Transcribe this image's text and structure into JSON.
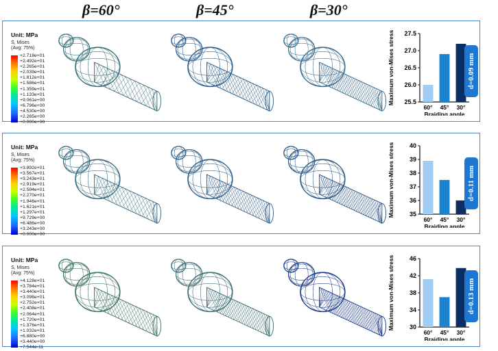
{
  "columns": {
    "b60": "β=60°",
    "b45": "β=45°",
    "b30": "β=30°"
  },
  "rows": [
    {
      "d_label": "d=0.09 mm",
      "legend": {
        "unit": "Unit: MPa",
        "var": "S, Mises",
        "avg": "(Avg: 75%)",
        "values": [
          "+2.718e+01",
          "+2.492e+01",
          "+2.265e+01",
          "+2.039e+01",
          "+1.812e+01",
          "+1.586e+01",
          "+1.359e+01",
          "+1.133e+01",
          "+9.061e+00",
          "+6.796e+00",
          "+4.530e+00",
          "+2.265e+00",
          "+0.000e+00"
        ]
      },
      "stent_tints": [
        "#3d6f7a",
        "#2f5f8a",
        "#3a6c8c"
      ]
    },
    {
      "d_label": "d=0.11 mm",
      "legend": {
        "unit": "Unit: MPa",
        "var": "S, Mises",
        "avg": "(Avg: 75%)",
        "values": [
          "+3.892e+01",
          "+3.567e+01",
          "+3.243e+01",
          "+2.919e+01",
          "+2.594e+01",
          "+2.270e+01",
          "+1.946e+01",
          "+1.621e+01",
          "+1.297e+01",
          "+9.729e+00",
          "+6.486e+00",
          "+3.243e+00",
          "+0.000e+00"
        ]
      },
      "stent_tints": [
        "#3a6f80",
        "#35628a",
        "#2f5a86"
      ]
    },
    {
      "d_label": "d=0.13 mm",
      "legend": {
        "unit": "Unit: MPa",
        "var": "S, Mises",
        "avg": "(Avg: 75%)",
        "values": [
          "+4.128e+01",
          "+3.784e+01",
          "+3.440e+01",
          "+3.096e+01",
          "+2.752e+01",
          "+2.408e+01",
          "+2.064e+01",
          "+1.720e+01",
          "+1.376e+01",
          "+1.032e+01",
          "+6.880e+00",
          "+3.440e+00",
          "+7.544e-11"
        ]
      },
      "stent_tints": [
        "#3f7366",
        "#3e6f72",
        "#1f3f8c"
      ]
    }
  ],
  "chart_data": [
    {
      "type": "bar",
      "categories": [
        "60°",
        "45°",
        "30°"
      ],
      "values": [
        26.0,
        26.9,
        27.2
      ],
      "ylim": [
        25.5,
        27.5
      ],
      "yticks": [
        "25.5",
        "26.0",
        "26.5",
        "27.0",
        "27.5"
      ],
      "ylabel": "Maximum von-Mises stress",
      "xlabel": "Braiding angle",
      "colors": [
        "#9fcdf4",
        "#1b83cf",
        "#0c2f63"
      ]
    },
    {
      "type": "bar",
      "categories": [
        "60°",
        "45°",
        "30°"
      ],
      "values": [
        38.9,
        37.5,
        36.0
      ],
      "ylim": [
        35,
        40
      ],
      "yticks": [
        "35",
        "36",
        "37",
        "38",
        "39",
        "40"
      ],
      "ylabel": "Maximum von-Mises stress",
      "xlabel": "Braiding angle",
      "colors": [
        "#9fcdf4",
        "#1b83cf",
        "#0c2f63"
      ]
    },
    {
      "type": "bar",
      "categories": [
        "60°",
        "45°",
        "30°"
      ],
      "values": [
        41.2,
        37.0,
        43.8
      ],
      "ylim": [
        30,
        46
      ],
      "yticks": [
        "30",
        "34",
        "38",
        "42",
        "46"
      ],
      "ylabel": "Maximum von-Mises stress",
      "xlabel": "Braiding angle",
      "colors": [
        "#9fcdf4",
        "#1b83cf",
        "#0c2f63"
      ]
    }
  ]
}
